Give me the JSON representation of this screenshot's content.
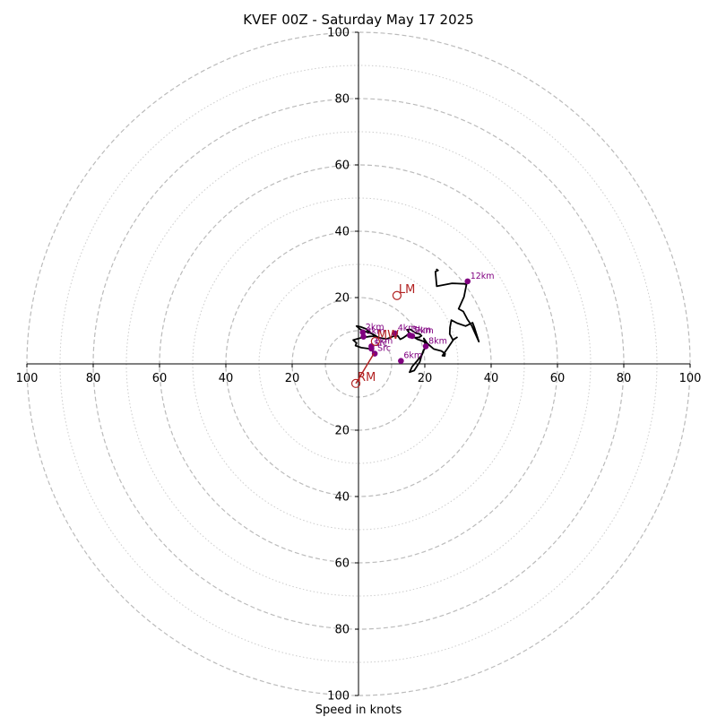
{
  "chart_data": {
    "type": "scatter",
    "title": "KVEF 00Z - Saturday May 17 2025",
    "xlabel": "Speed in knots",
    "ylabel": "",
    "xlim": [
      -100,
      100
    ],
    "ylim": [
      -100,
      100
    ],
    "rings": {
      "dashed": [
        10,
        20,
        40,
        60,
        80,
        100
      ],
      "dotted": [
        30,
        50,
        70,
        90
      ]
    },
    "x_ticks": [
      {
        "value": -100,
        "label": "100"
      },
      {
        "value": -80,
        "label": "80"
      },
      {
        "value": -60,
        "label": "60"
      },
      {
        "value": -40,
        "label": "40"
      },
      {
        "value": -20,
        "label": "20"
      },
      {
        "value": 20,
        "label": "20"
      },
      {
        "value": 40,
        "label": "40"
      },
      {
        "value": 60,
        "label": "60"
      },
      {
        "value": 80,
        "label": "80"
      },
      {
        "value": 100,
        "label": "100"
      }
    ],
    "y_ticks": [
      {
        "value": 100,
        "label": "100"
      },
      {
        "value": 80,
        "label": "80"
      },
      {
        "value": 60,
        "label": "60"
      },
      {
        "value": 40,
        "label": "40"
      },
      {
        "value": 20,
        "label": "20"
      },
      {
        "value": -20,
        "label": "20"
      },
      {
        "value": -40,
        "label": "40"
      },
      {
        "value": -60,
        "label": "60"
      },
      {
        "value": -80,
        "label": "80"
      },
      {
        "value": -100,
        "label": "100"
      }
    ],
    "hodograph": {
      "color": "#000000",
      "x": [
        4.7,
        3.8,
        0.8,
        -0.9,
        -0.6,
        -1.6,
        0.6,
        3.5,
        5.3,
        4.3,
        2.6,
        0.7,
        -0.6,
        0.6,
        2.2,
        4.1,
        6.1,
        8.4,
        10.7,
        11.8,
        12.6,
        13.4,
        14.7,
        15.3,
        14.6,
        15.6,
        17.3,
        18.5,
        19.0,
        18.3,
        17.0,
        17.8,
        19.3,
        20.7,
        20.1,
        19.2,
        17.5,
        16.2,
        15.4,
        16.8,
        18.5,
        19.2,
        19.6,
        20.3,
        19.9,
        19.7,
        20.7,
        22.7,
        23.4,
        25.0,
        26.1,
        26.0,
        25.3,
        26.8,
        28.7,
        29.7,
        28.8,
        28.5,
        27.5,
        27.6,
        28.0,
        29.7,
        32.3,
        34.4,
        35.0,
        36.3,
        34.1,
        32.8,
        31.6,
        30.2,
        31.8,
        32.6,
        28.2,
        23.6,
        23.2,
        24.0,
        23.4
      ],
      "y": [
        3.2,
        4.5,
        4.9,
        5.5,
        6.3,
        7.2,
        7.8,
        8.3,
        8.4,
        9.0,
        9.6,
        10.3,
        11.4,
        11.2,
        10.6,
        9.0,
        7.9,
        7.5,
        8.4,
        8.5,
        7.4,
        7.8,
        8.7,
        9.4,
        10.3,
        10.4,
        9.3,
        9.0,
        8.5,
        8.0,
        7.9,
        7.4,
        6.9,
        6.2,
        5.1,
        2.8,
        0.7,
        -0.8,
        -2.5,
        -2.0,
        0.6,
        3.0,
        4.1,
        4.9,
        6.9,
        7.7,
        6.2,
        4.5,
        4.3,
        3.9,
        3.1,
        2.4,
        2.5,
        4.6,
        7.4,
        8.0,
        7.4,
        7.2,
        9.0,
        11.0,
        13.2,
        12.3,
        11.4,
        12.4,
        10.8,
        6.7,
        11.6,
        13.5,
        15.8,
        16.6,
        20.2,
        24.1,
        24.3,
        23.4,
        27.8,
        28.2,
        28.6
      ]
    },
    "height_points": [
      {
        "label": "Src",
        "x": 4.9,
        "y": 3.1
      },
      {
        "label": "2km",
        "x": 1.3,
        "y": 9.5
      },
      {
        "label": "3km",
        "x": 1.5,
        "y": 8.2
      },
      {
        "label": "4km",
        "x": 11.0,
        "y": 9.2
      },
      {
        "label": "5km",
        "x": 15.5,
        "y": 8.6
      },
      {
        "label": "6km",
        "x": 12.8,
        "y": 0.9
      },
      {
        "label": "7km",
        "x": 16.2,
        "y": 8.4
      },
      {
        "label": "8km",
        "x": 20.3,
        "y": 5.3
      },
      {
        "label": "12km",
        "x": 32.9,
        "y": 24.9
      },
      {
        "label": "1km",
        "x": 3.9,
        "y": 5.3
      },
      {
        "label": "Src",
        "x": 3.9,
        "y": 4.6
      }
    ],
    "vectors": [
      {
        "label": "MW",
        "x": 5.1,
        "y": 6.8
      },
      {
        "label": "LM",
        "x": 11.6,
        "y": 20.6
      },
      {
        "label": "RM",
        "x": -0.8,
        "y": -5.9
      }
    ],
    "colors": {
      "hodograph": "#000000",
      "height_points": "#800080",
      "vectors": "#b22222",
      "rings": "#bbbbbb"
    }
  }
}
